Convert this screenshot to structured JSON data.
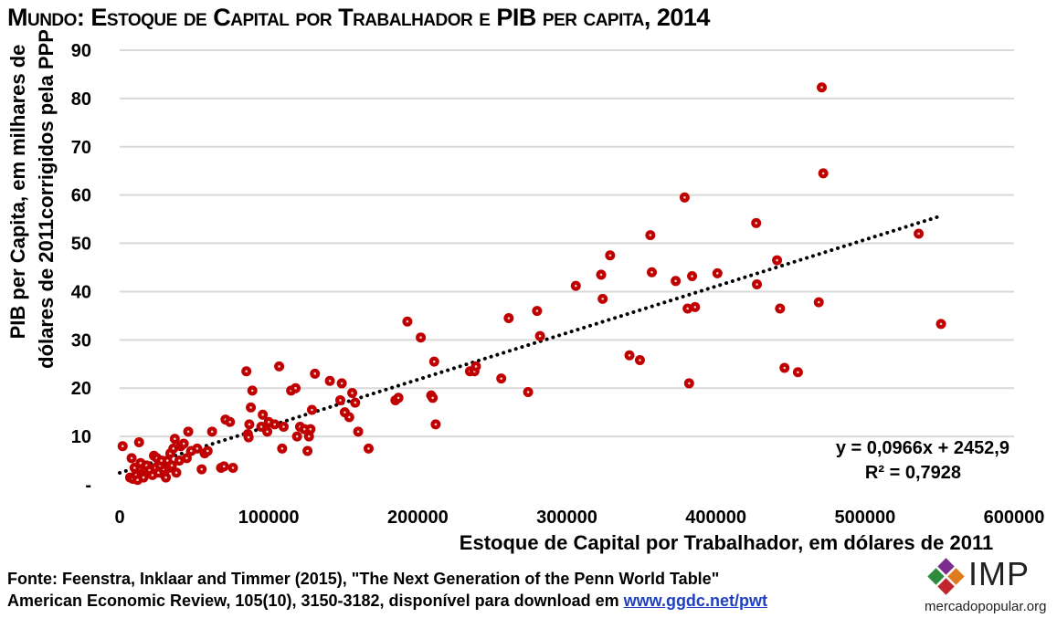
{
  "title": {
    "part1": "Mundo: Estoque de Capital por Trabalhador e PIB",
    "part2": " per capita",
    "part3": ", 2014"
  },
  "chart_data": {
    "type": "scatter",
    "xlabel": "Estoque de Capital por Trabalhador, em dólares de 2011",
    "ylabel_line1": "PIB per Capita, em milhares de",
    "ylabel_line2": "dólares de 2011corrigidos pela PPP",
    "xlim": [
      0,
      600000
    ],
    "ylim": [
      0,
      90
    ],
    "x_ticks": [
      0,
      100000,
      200000,
      300000,
      400000,
      500000,
      600000
    ],
    "x_tick_labels": [
      "0",
      "100000",
      "200000",
      "300000",
      "400000",
      "500000",
      "600000"
    ],
    "y_ticks": [
      0,
      10,
      20,
      30,
      40,
      50,
      60,
      70,
      80,
      90
    ],
    "y_tick_labels": [
      "-",
      "10",
      "20",
      "30",
      "40",
      "50",
      "60",
      "70",
      "80",
      "90"
    ],
    "grid": "horizontal",
    "trendline": {
      "type": "linear",
      "slope": 0.0966,
      "intercept": 2452.9,
      "x_range": [
        0,
        550000
      ],
      "style": "dotted"
    },
    "equation_label": "y = 0,0966x + 2452,9",
    "r2_label": "R² = 0,7928",
    "marker_color": "#c00000",
    "trend_color": "#000000",
    "points": [
      [
        2000,
        8
      ],
      [
        7000,
        1.5
      ],
      [
        8000,
        5.5
      ],
      [
        9000,
        1.2
      ],
      [
        10000,
        3.5
      ],
      [
        11000,
        2
      ],
      [
        12000,
        1
      ],
      [
        13000,
        8.8
      ],
      [
        14000,
        4.5
      ],
      [
        15000,
        2.3
      ],
      [
        16000,
        1.5
      ],
      [
        17000,
        3.2
      ],
      [
        18000,
        4
      ],
      [
        20000,
        3
      ],
      [
        22000,
        2
      ],
      [
        23000,
        6
      ],
      [
        24000,
        3.5
      ],
      [
        25000,
        5.5
      ],
      [
        26000,
        2.5
      ],
      [
        27000,
        4
      ],
      [
        28000,
        5
      ],
      [
        30000,
        2
      ],
      [
        31000,
        1.5
      ],
      [
        32000,
        5
      ],
      [
        33000,
        3.5
      ],
      [
        34000,
        6.5
      ],
      [
        35000,
        4
      ],
      [
        36000,
        7.5
      ],
      [
        37000,
        9.5
      ],
      [
        38000,
        2.5
      ],
      [
        40000,
        5
      ],
      [
        41000,
        8
      ],
      [
        43000,
        8.5
      ],
      [
        45000,
        5.5
      ],
      [
        46000,
        11
      ],
      [
        48000,
        7
      ],
      [
        52000,
        7.5
      ],
      [
        55000,
        3.2
      ],
      [
        57000,
        6.5
      ],
      [
        59000,
        7
      ],
      [
        62000,
        11
      ],
      [
        68000,
        3.5
      ],
      [
        70000,
        3.8
      ],
      [
        71000,
        13.5
      ],
      [
        74000,
        13
      ],
      [
        76000,
        3.5
      ],
      [
        85000,
        23.5
      ],
      [
        86000,
        10.5
      ],
      [
        86500,
        9.8
      ],
      [
        87000,
        12.5
      ],
      [
        88000,
        16
      ],
      [
        89000,
        19.5
      ],
      [
        95000,
        12
      ],
      [
        96000,
        14.5
      ],
      [
        99000,
        11
      ],
      [
        100000,
        13
      ],
      [
        104000,
        12.5
      ],
      [
        107000,
        24.5
      ],
      [
        109000,
        7.5
      ],
      [
        110000,
        12
      ],
      [
        115000,
        19.5
      ],
      [
        118000,
        20
      ],
      [
        119000,
        10
      ],
      [
        121000,
        12
      ],
      [
        124000,
        11.5
      ],
      [
        126000,
        7
      ],
      [
        127000,
        10
      ],
      [
        128000,
        11.5
      ],
      [
        129000,
        15.5
      ],
      [
        131000,
        23
      ],
      [
        141000,
        21.5
      ],
      [
        148000,
        17.5
      ],
      [
        149000,
        21
      ],
      [
        151000,
        15
      ],
      [
        154000,
        14
      ],
      [
        156000,
        19
      ],
      [
        158000,
        17
      ],
      [
        160000,
        11
      ],
      [
        167000,
        7.5
      ],
      [
        185000,
        17.5
      ],
      [
        187000,
        18
      ],
      [
        193000,
        33.8
      ],
      [
        202000,
        30.5
      ],
      [
        209000,
        18.5
      ],
      [
        210000,
        18
      ],
      [
        211000,
        25.5
      ],
      [
        212000,
        12.5
      ],
      [
        235000,
        23.5
      ],
      [
        238000,
        23.5
      ],
      [
        239000,
        24.5
      ],
      [
        256000,
        22
      ],
      [
        261000,
        34.5
      ],
      [
        274000,
        19.2
      ],
      [
        280000,
        36
      ],
      [
        282000,
        30.8
      ],
      [
        306000,
        41.2
      ],
      [
        323000,
        43.5
      ],
      [
        324000,
        38.5
      ],
      [
        329000,
        47.5
      ],
      [
        342000,
        26.8
      ],
      [
        349000,
        25.8
      ],
      [
        356000,
        51.7
      ],
      [
        357000,
        44
      ],
      [
        373000,
        42.2
      ],
      [
        379000,
        59.5
      ],
      [
        381000,
        36.5
      ],
      [
        382000,
        21
      ],
      [
        384000,
        43.2
      ],
      [
        386000,
        36.8
      ],
      [
        401000,
        43.8
      ],
      [
        427000,
        54.2
      ],
      [
        427500,
        41.5
      ],
      [
        441000,
        46.5
      ],
      [
        443000,
        36.5
      ],
      [
        446000,
        24.2
      ],
      [
        455000,
        23.3
      ],
      [
        469000,
        37.8
      ],
      [
        471000,
        82.3
      ],
      [
        472000,
        64.5
      ],
      [
        536000,
        52
      ],
      [
        551000,
        33.3
      ]
    ]
  },
  "source": {
    "line1": "Fonte: Feenstra, Inklaar and Timmer (2015), \"The Next Generation of the Penn World Table\"",
    "line2": "American Economic Review, 105(10), 3150-3182, disponível para download em ",
    "link": "www.ggdc.net/pwt"
  },
  "logo": {
    "text": "IMP",
    "site": "mercadopopular.org",
    "colors": [
      "#7b2d8e",
      "#2e8b3e",
      "#e07a1f",
      "#c0262c"
    ]
  }
}
